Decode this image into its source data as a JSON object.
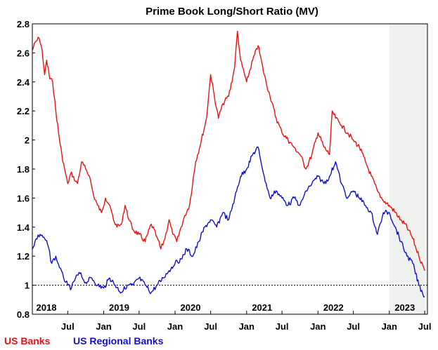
{
  "chart_data": {
    "type": "line",
    "title": "Prime Book Long/Short Ratio (MV)",
    "xlabel": "",
    "ylabel": "",
    "ylim": [
      0.8,
      2.8
    ],
    "yticks": [
      "0.8",
      "1",
      "1.2",
      "1.4",
      "1.6",
      "1.8",
      "2",
      "2.2",
      "2.4",
      "2.6",
      "2.8"
    ],
    "xlim": [
      "2018-01-01",
      "2023-07-15"
    ],
    "year_labels": [
      {
        "label": "2018",
        "date": "2018-01-01"
      },
      {
        "label": "2019",
        "date": "2019-01-01"
      },
      {
        "label": "2020",
        "date": "2020-01-01"
      },
      {
        "label": "2021",
        "date": "2021-01-01"
      },
      {
        "label": "2022",
        "date": "2022-01-01"
      },
      {
        "label": "2023",
        "date": "2023-01-01"
      }
    ],
    "month_ticks": [
      {
        "label": "Jul",
        "date": "2018-07-01"
      },
      {
        "label": "Jan",
        "date": "2019-01-01"
      },
      {
        "label": "Jul",
        "date": "2019-07-01"
      },
      {
        "label": "Jan",
        "date": "2020-01-01"
      },
      {
        "label": "Jul",
        "date": "2020-07-01"
      },
      {
        "label": "Jan",
        "date": "2021-01-01"
      },
      {
        "label": "Jul",
        "date": "2021-07-01"
      },
      {
        "label": "Jan",
        "date": "2022-01-01"
      },
      {
        "label": "Jul",
        "date": "2022-07-01"
      },
      {
        "label": "Jan",
        "date": "2023-01-01"
      },
      {
        "label": "Jul",
        "date": "2023-07-01"
      }
    ],
    "reference_line": {
      "y": 1.0,
      "style": "dashed",
      "color": "#000000"
    },
    "shaded_region": {
      "from": "2023-01-01",
      "to": "2023-07-15",
      "color": "#eef1ee"
    },
    "grid": false,
    "legend_position": "bottom-left",
    "series": [
      {
        "name": "US Banks",
        "color": "#ee1111",
        "points": [
          [
            "2018-01-01",
            2.62
          ],
          [
            "2018-01-20",
            2.68
          ],
          [
            "2018-02-05",
            2.7
          ],
          [
            "2018-02-20",
            2.62
          ],
          [
            "2018-03-05",
            2.45
          ],
          [
            "2018-03-15",
            2.55
          ],
          [
            "2018-04-01",
            2.42
          ],
          [
            "2018-04-15",
            2.4
          ],
          [
            "2018-05-01",
            2.2
          ],
          [
            "2018-05-15",
            2.05
          ],
          [
            "2018-06-01",
            1.9
          ],
          [
            "2018-06-15",
            1.8
          ],
          [
            "2018-07-01",
            1.7
          ],
          [
            "2018-07-20",
            1.78
          ],
          [
            "2018-08-05",
            1.72
          ],
          [
            "2018-08-20",
            1.7
          ],
          [
            "2018-09-10",
            1.85
          ],
          [
            "2018-10-01",
            1.8
          ],
          [
            "2018-10-20",
            1.75
          ],
          [
            "2018-11-10",
            1.62
          ],
          [
            "2018-12-01",
            1.55
          ],
          [
            "2018-12-20",
            1.5
          ],
          [
            "2019-01-10",
            1.6
          ],
          [
            "2019-02-01",
            1.55
          ],
          [
            "2019-02-20",
            1.45
          ],
          [
            "2019-03-10",
            1.4
          ],
          [
            "2019-04-01",
            1.42
          ],
          [
            "2019-04-20",
            1.55
          ],
          [
            "2019-05-10",
            1.45
          ],
          [
            "2019-06-01",
            1.38
          ],
          [
            "2019-07-01",
            1.35
          ],
          [
            "2019-08-01",
            1.3
          ],
          [
            "2019-09-01",
            1.42
          ],
          [
            "2019-10-01",
            1.33
          ],
          [
            "2019-10-20",
            1.25
          ],
          [
            "2019-11-10",
            1.32
          ],
          [
            "2019-12-01",
            1.45
          ],
          [
            "2019-12-20",
            1.35
          ],
          [
            "2020-01-10",
            1.3
          ],
          [
            "2020-02-01",
            1.4
          ],
          [
            "2020-02-20",
            1.48
          ],
          [
            "2020-03-15",
            1.55
          ],
          [
            "2020-04-15",
            1.85
          ],
          [
            "2020-05-15",
            2.0
          ],
          [
            "2020-06-10",
            2.15
          ],
          [
            "2020-07-01",
            2.45
          ],
          [
            "2020-07-20",
            2.3
          ],
          [
            "2020-08-10",
            2.15
          ],
          [
            "2020-09-01",
            2.25
          ],
          [
            "2020-10-01",
            2.3
          ],
          [
            "2020-11-01",
            2.5
          ],
          [
            "2020-11-15",
            2.75
          ],
          [
            "2020-12-01",
            2.55
          ],
          [
            "2021-01-01",
            2.4
          ],
          [
            "2021-02-01",
            2.55
          ],
          [
            "2021-03-01",
            2.65
          ],
          [
            "2021-04-01",
            2.45
          ],
          [
            "2021-05-01",
            2.3
          ],
          [
            "2021-06-01",
            2.15
          ],
          [
            "2021-07-01",
            2.05
          ],
          [
            "2021-08-01",
            2.0
          ],
          [
            "2021-09-01",
            1.95
          ],
          [
            "2021-10-01",
            1.9
          ],
          [
            "2021-11-01",
            1.8
          ],
          [
            "2021-12-01",
            1.9
          ],
          [
            "2022-01-01",
            2.05
          ],
          [
            "2022-02-01",
            1.95
          ],
          [
            "2022-03-01",
            1.9
          ],
          [
            "2022-03-15",
            2.2
          ],
          [
            "2022-04-01",
            2.15
          ],
          [
            "2022-05-01",
            2.1
          ],
          [
            "2022-06-01",
            2.05
          ],
          [
            "2022-07-01",
            2.0
          ],
          [
            "2022-08-01",
            1.95
          ],
          [
            "2022-09-01",
            1.85
          ],
          [
            "2022-10-01",
            1.75
          ],
          [
            "2022-11-01",
            1.65
          ],
          [
            "2022-12-01",
            1.58
          ],
          [
            "2023-01-01",
            1.55
          ],
          [
            "2023-02-01",
            1.5
          ],
          [
            "2023-03-01",
            1.45
          ],
          [
            "2023-04-01",
            1.4
          ],
          [
            "2023-05-01",
            1.32
          ],
          [
            "2023-06-01",
            1.2
          ],
          [
            "2023-07-01",
            1.1
          ]
        ]
      },
      {
        "name": "US Regional Banks",
        "color": "#1111cc",
        "points": [
          [
            "2018-01-01",
            1.25
          ],
          [
            "2018-01-20",
            1.32
          ],
          [
            "2018-02-10",
            1.35
          ],
          [
            "2018-03-01",
            1.33
          ],
          [
            "2018-03-20",
            1.28
          ],
          [
            "2018-04-10",
            1.15
          ],
          [
            "2018-05-01",
            1.2
          ],
          [
            "2018-05-20",
            1.12
          ],
          [
            "2018-06-10",
            1.05
          ],
          [
            "2018-07-01",
            1.0
          ],
          [
            "2018-07-20",
            0.98
          ],
          [
            "2018-08-10",
            1.05
          ],
          [
            "2018-09-01",
            1.08
          ],
          [
            "2018-10-01",
            1.02
          ],
          [
            "2018-11-01",
            1.05
          ],
          [
            "2018-12-01",
            1.0
          ],
          [
            "2019-01-01",
            0.98
          ],
          [
            "2019-02-01",
            1.05
          ],
          [
            "2019-03-01",
            1.0
          ],
          [
            "2019-04-01",
            0.95
          ],
          [
            "2019-05-01",
            1.0
          ],
          [
            "2019-06-01",
            1.0
          ],
          [
            "2019-07-01",
            1.05
          ],
          [
            "2019-08-01",
            1.0
          ],
          [
            "2019-09-01",
            0.95
          ],
          [
            "2019-10-01",
            1.0
          ],
          [
            "2019-11-01",
            1.05
          ],
          [
            "2019-12-01",
            1.1
          ],
          [
            "2020-01-01",
            1.15
          ],
          [
            "2020-02-01",
            1.18
          ],
          [
            "2020-03-01",
            1.25
          ],
          [
            "2020-04-01",
            1.2
          ],
          [
            "2020-05-01",
            1.3
          ],
          [
            "2020-06-01",
            1.4
          ],
          [
            "2020-07-01",
            1.45
          ],
          [
            "2020-08-01",
            1.4
          ],
          [
            "2020-09-01",
            1.5
          ],
          [
            "2020-10-01",
            1.45
          ],
          [
            "2020-11-01",
            1.6
          ],
          [
            "2020-12-01",
            1.75
          ],
          [
            "2021-01-01",
            1.8
          ],
          [
            "2021-02-01",
            1.9
          ],
          [
            "2021-03-01",
            1.95
          ],
          [
            "2021-04-01",
            1.75
          ],
          [
            "2021-05-01",
            1.6
          ],
          [
            "2021-06-01",
            1.65
          ],
          [
            "2021-07-01",
            1.6
          ],
          [
            "2021-08-01",
            1.55
          ],
          [
            "2021-09-01",
            1.6
          ],
          [
            "2021-10-01",
            1.55
          ],
          [
            "2021-11-01",
            1.65
          ],
          [
            "2021-12-01",
            1.7
          ],
          [
            "2022-01-01",
            1.75
          ],
          [
            "2022-02-01",
            1.7
          ],
          [
            "2022-03-01",
            1.75
          ],
          [
            "2022-04-01",
            1.85
          ],
          [
            "2022-05-01",
            1.7
          ],
          [
            "2022-06-01",
            1.6
          ],
          [
            "2022-07-01",
            1.65
          ],
          [
            "2022-08-01",
            1.6
          ],
          [
            "2022-09-01",
            1.55
          ],
          [
            "2022-10-01",
            1.5
          ],
          [
            "2022-11-01",
            1.35
          ],
          [
            "2022-12-01",
            1.5
          ],
          [
            "2023-01-01",
            1.5
          ],
          [
            "2023-02-01",
            1.4
          ],
          [
            "2023-03-01",
            1.3
          ],
          [
            "2023-04-01",
            1.2
          ],
          [
            "2023-05-01",
            1.15
          ],
          [
            "2023-06-01",
            1.0
          ],
          [
            "2023-07-01",
            0.92
          ]
        ]
      }
    ]
  }
}
